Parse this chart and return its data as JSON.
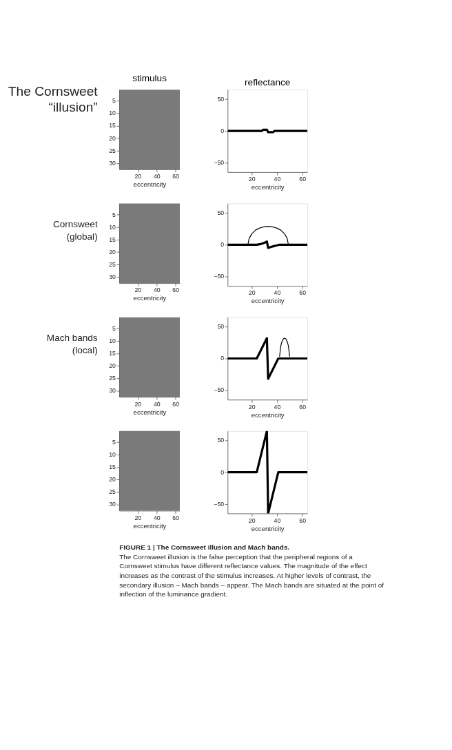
{
  "chart_data": [
    {
      "type": "heatmap",
      "title": "stimulus",
      "ylabel": "The Cornsweet\n“illusion”",
      "xlabel": "eccentricity",
      "xlim": [
        0.5,
        64.5
      ],
      "xticks": [
        20,
        40,
        60
      ],
      "ylim": [
        32.5,
        0.5
      ],
      "yticks": [
        5,
        10,
        15,
        20,
        25,
        30
      ],
      "grid": false
    },
    {
      "type": "line",
      "title": "reflectance",
      "xlabel": "eccentricity",
      "xlim": [
        1,
        64
      ],
      "xticks": [
        20,
        40,
        60
      ],
      "ylim": [
        -65,
        65
      ],
      "yticks": [
        -50,
        0,
        50
      ],
      "grid": false,
      "x": [
        1,
        28,
        29,
        32,
        33,
        37,
        38,
        64
      ],
      "series": [
        {
          "color": "#000000",
          "values": [
            0,
            0,
            2,
            2,
            -2,
            -2,
            0,
            0
          ]
        }
      ]
    },
    {
      "type": "heatmap",
      "ylabel": "Cornsweet\n(global)",
      "xlabel": "eccentricity",
      "xlim": [
        0.5,
        64.5
      ],
      "xticks": [
        20,
        40,
        60
      ],
      "ylim": [
        32.5,
        0.5
      ],
      "yticks": [
        5,
        10,
        15,
        20,
        25,
        30
      ],
      "grid": false
    },
    {
      "type": "line",
      "xlabel": "eccentricity",
      "xlim": [
        1,
        64
      ],
      "xticks": [
        20,
        40,
        60
      ],
      "ylim": [
        -65,
        65
      ],
      "yticks": [
        -50,
        0,
        50
      ],
      "grid": false,
      "x": [
        1,
        24,
        27,
        30,
        32,
        33,
        36,
        40,
        42,
        64
      ],
      "series": [
        {
          "color": "#000000",
          "values": [
            0,
            0,
            1,
            3,
            5,
            -5,
            -3,
            -1,
            0,
            0
          ]
        },
        {
          "color": "#000000",
          "x": [
            17,
            18,
            20,
            23,
            26,
            29,
            33,
            37,
            40,
            43,
            46,
            48,
            49
          ],
          "values": [
            0,
            10,
            17,
            23,
            26,
            28,
            29,
            28,
            26,
            23,
            17,
            10,
            0
          ]
        }
      ]
    },
    {
      "type": "heatmap",
      "ylabel": "Mach bands\n(local)",
      "xlabel": "eccentricity",
      "xlim": [
        0.5,
        64.5
      ],
      "xticks": [
        20,
        40,
        60
      ],
      "ylim": [
        32.5,
        0.5
      ],
      "yticks": [
        5,
        10,
        15,
        20,
        25,
        30
      ],
      "grid": false
    },
    {
      "type": "line",
      "xlabel": "eccentricity",
      "xlim": [
        1,
        64
      ],
      "xticks": [
        20,
        40,
        60
      ],
      "ylim": [
        -65,
        65
      ],
      "yticks": [
        -50,
        0,
        50
      ],
      "grid": false,
      "x": [
        1,
        24,
        32,
        33,
        41,
        64
      ],
      "series": [
        {
          "color": "#000000",
          "values": [
            0,
            0,
            32,
            -32,
            0,
            0
          ]
        },
        {
          "color": "#000000",
          "x": [
            42,
            43,
            44,
            45,
            46,
            47,
            48,
            49,
            50
          ],
          "values": [
            3,
            20,
            27,
            31,
            32,
            31,
            27,
            20,
            3
          ]
        }
      ]
    },
    {
      "type": "heatmap",
      "xlabel": "eccentricity",
      "xlim": [
        0.5,
        64.5
      ],
      "xticks": [
        20,
        40,
        60
      ],
      "ylim": [
        32.5,
        0.5
      ],
      "yticks": [
        5,
        10,
        15,
        20,
        25,
        30
      ],
      "grid": false
    },
    {
      "type": "line",
      "xlabel": "eccentricity",
      "xlim": [
        1,
        64
      ],
      "xticks": [
        20,
        40,
        60
      ],
      "ylim": [
        -65,
        65
      ],
      "yticks": [
        -50,
        0,
        50
      ],
      "grid": false,
      "x": [
        1,
        24,
        32,
        33,
        41,
        64
      ],
      "series": [
        {
          "color": "#000000",
          "values": [
            0,
            0,
            65,
            -65,
            0,
            0
          ]
        }
      ],
      "annotations": [
        "FIGURE 1 | The Cornsweet illusion and Mach bands.",
        "The Cornsweet illusion is the false perception that the peripheral regions of a Cornsweet stimulus have different reflectance values. The magnitude of the effect increases as the contrast of the stimulus increases. At higher levels of contrast, the secondary illusion – Mach bands – appear. The Mach bands are situated at the point of inflection of the luminance gradient."
      ]
    }
  ]
}
